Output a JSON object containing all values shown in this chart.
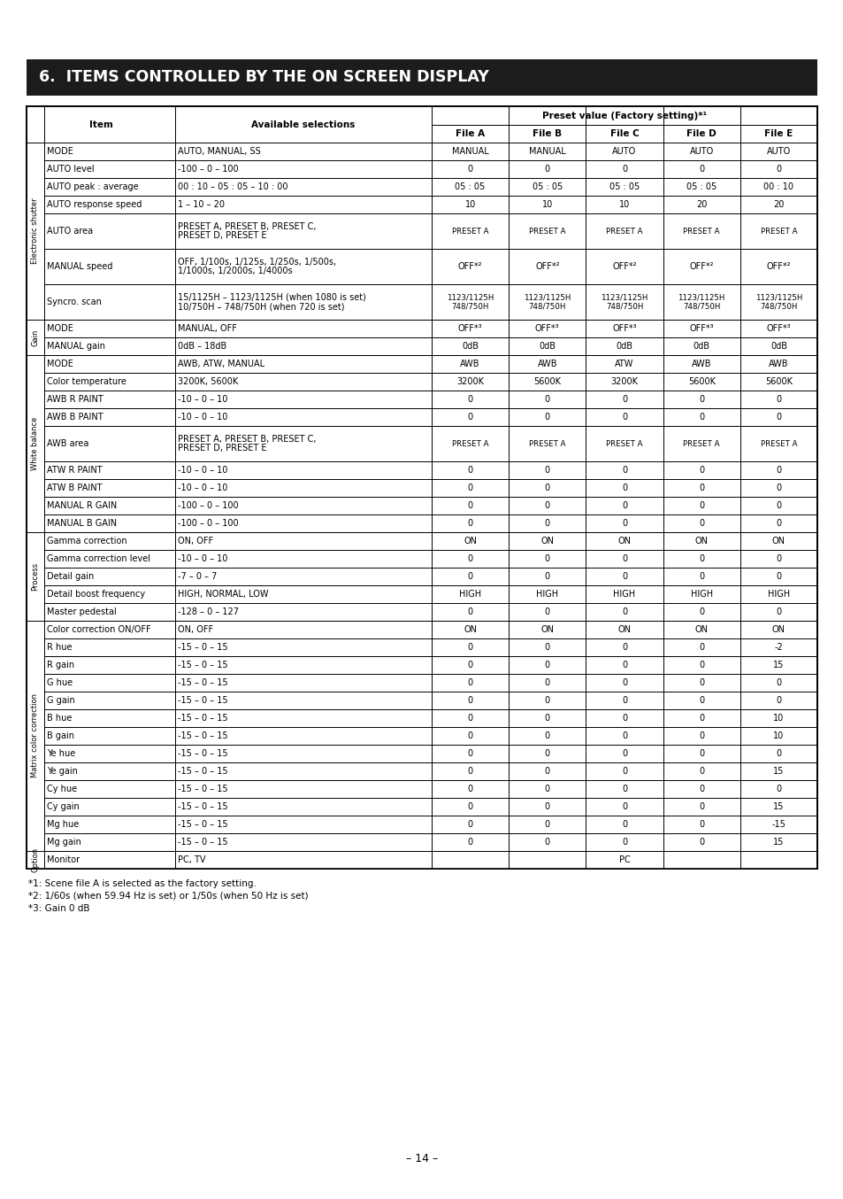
{
  "title": "6.  ITEMS CONTROLLED BY THE ON SCREEN DISPLAY",
  "page_num": "– 14 –",
  "footnotes": [
    "*1: Scene file A is selected as the factory setting.",
    "*2: 1/60s (when 59.94 Hz is set) or 1/50s (when 50 Hz is set)",
    "*3: Gain 0 dB"
  ],
  "sections": [
    {
      "label": "Electronic shutter",
      "rows": [
        {
          "item": "MODE",
          "sel": "AUTO, MANUAL, SS",
          "vals": [
            "MANUAL",
            "MANUAL",
            "AUTO",
            "AUTO",
            "AUTO"
          ],
          "tall": false
        },
        {
          "item": "AUTO level",
          "sel": "-100 – 0 – 100",
          "vals": [
            "0",
            "0",
            "0",
            "0",
            "0"
          ],
          "tall": false
        },
        {
          "item": "AUTO peak : average",
          "sel": "00 : 10 – 05 : 05 – 10 : 00",
          "vals": [
            "05 : 05",
            "05 : 05",
            "05 : 05",
            "05 : 05",
            "00 : 10"
          ],
          "tall": false
        },
        {
          "item": "AUTO response speed",
          "sel": "1 – 10 – 20",
          "vals": [
            "10",
            "10",
            "10",
            "20",
            "20"
          ],
          "tall": false
        },
        {
          "item": "AUTO area",
          "sel": "PRESET A, PRESET B, PRESET C,\nPRESET D, PRESET E",
          "vals": [
            "PRESET A",
            "PRESET A",
            "PRESET A",
            "PRESET A",
            "PRESET A"
          ],
          "tall": true
        },
        {
          "item": "MANUAL speed",
          "sel": "OFF, 1/100s, 1/125s, 1/250s, 1/500s,\n1/1000s, 1/2000s, 1/4000s",
          "vals": [
            "OFF*²",
            "OFF*²",
            "OFF*²",
            "OFF*²",
            "OFF*²"
          ],
          "tall": true
        },
        {
          "item": "Syncro. scan",
          "sel": "15/1125H – 1123/1125H (when 1080 is set)\n10/750H – 748/750H (when 720 is set)",
          "vals": [
            "1123/1125H\n748/750H",
            "1123/1125H\n748/750H",
            "1123/1125H\n748/750H",
            "1123/1125H\n748/750H",
            "1123/1125H\n748/750H"
          ],
          "tall": true
        }
      ]
    },
    {
      "label": "Gain",
      "rows": [
        {
          "item": "MODE",
          "sel": "MANUAL, OFF",
          "vals": [
            "OFF*³",
            "OFF*³",
            "OFF*³",
            "OFF*³",
            "OFF*³"
          ],
          "tall": false
        },
        {
          "item": "MANUAL gain",
          "sel": "0dB – 18dB",
          "vals": [
            "0dB",
            "0dB",
            "0dB",
            "0dB",
            "0dB"
          ],
          "tall": false
        }
      ]
    },
    {
      "label": "White balance",
      "rows": [
        {
          "item": "MODE",
          "sel": "AWB, ATW, MANUAL",
          "vals": [
            "AWB",
            "AWB",
            "ATW",
            "AWB",
            "AWB"
          ],
          "tall": false
        },
        {
          "item": "Color temperature",
          "sel": "3200K, 5600K",
          "vals": [
            "3200K",
            "5600K",
            "3200K",
            "5600K",
            "5600K"
          ],
          "tall": false
        },
        {
          "item": "AWB R PAINT",
          "sel": "-10 – 0 – 10",
          "vals": [
            "0",
            "0",
            "0",
            "0",
            "0"
          ],
          "tall": false
        },
        {
          "item": "AWB B PAINT",
          "sel": "-10 – 0 – 10",
          "vals": [
            "0",
            "0",
            "0",
            "0",
            "0"
          ],
          "tall": false
        },
        {
          "item": "AWB area",
          "sel": "PRESET A, PRESET B, PRESET C,\nPRESET D, PRESET E",
          "vals": [
            "PRESET A",
            "PRESET A",
            "PRESET A",
            "PRESET A",
            "PRESET A"
          ],
          "tall": true
        },
        {
          "item": "ATW R PAINT",
          "sel": "-10 – 0 – 10",
          "vals": [
            "0",
            "0",
            "0",
            "0",
            "0"
          ],
          "tall": false
        },
        {
          "item": "ATW B PAINT",
          "sel": "-10 – 0 – 10",
          "vals": [
            "0",
            "0",
            "0",
            "0",
            "0"
          ],
          "tall": false
        },
        {
          "item": "MANUAL R GAIN",
          "sel": "-100 – 0 – 100",
          "vals": [
            "0",
            "0",
            "0",
            "0",
            "0"
          ],
          "tall": false
        },
        {
          "item": "MANUAL B GAIN",
          "sel": "-100 – 0 – 100",
          "vals": [
            "0",
            "0",
            "0",
            "0",
            "0"
          ],
          "tall": false
        }
      ]
    },
    {
      "label": "Process",
      "rows": [
        {
          "item": "Gamma correction",
          "sel": "ON, OFF",
          "vals": [
            "ON",
            "ON",
            "ON",
            "ON",
            "ON"
          ],
          "tall": false
        },
        {
          "item": "Gamma correction level",
          "sel": "-10 – 0 – 10",
          "vals": [
            "0",
            "0",
            "0",
            "0",
            "0"
          ],
          "tall": false
        },
        {
          "item": "Detail gain",
          "sel": "-7 – 0 – 7",
          "vals": [
            "0",
            "0",
            "0",
            "0",
            "0"
          ],
          "tall": false
        },
        {
          "item": "Detail boost frequency",
          "sel": "HIGH, NORMAL, LOW",
          "vals": [
            "HIGH",
            "HIGH",
            "HIGH",
            "HIGH",
            "HIGH"
          ],
          "tall": false
        },
        {
          "item": "Master pedestal",
          "sel": "-128 – 0 – 127",
          "vals": [
            "0",
            "0",
            "0",
            "0",
            "0"
          ],
          "tall": false
        }
      ]
    },
    {
      "label": "Matrix color correction",
      "rows": [
        {
          "item": "Color correction ON/OFF",
          "sel": "ON, OFF",
          "vals": [
            "ON",
            "ON",
            "ON",
            "ON",
            "ON"
          ],
          "tall": false
        },
        {
          "item": "R hue",
          "sel": "-15 – 0 – 15",
          "vals": [
            "0",
            "0",
            "0",
            "0",
            "-2"
          ],
          "tall": false
        },
        {
          "item": "R gain",
          "sel": "-15 – 0 – 15",
          "vals": [
            "0",
            "0",
            "0",
            "0",
            "15"
          ],
          "tall": false
        },
        {
          "item": "G hue",
          "sel": "-15 – 0 – 15",
          "vals": [
            "0",
            "0",
            "0",
            "0",
            "0"
          ],
          "tall": false
        },
        {
          "item": "G gain",
          "sel": "-15 – 0 – 15",
          "vals": [
            "0",
            "0",
            "0",
            "0",
            "0"
          ],
          "tall": false
        },
        {
          "item": "B hue",
          "sel": "-15 – 0 – 15",
          "vals": [
            "0",
            "0",
            "0",
            "0",
            "10"
          ],
          "tall": false
        },
        {
          "item": "B gain",
          "sel": "-15 – 0 – 15",
          "vals": [
            "0",
            "0",
            "0",
            "0",
            "10"
          ],
          "tall": false
        },
        {
          "item": "Ye hue",
          "sel": "-15 – 0 – 15",
          "vals": [
            "0",
            "0",
            "0",
            "0",
            "0"
          ],
          "tall": false
        },
        {
          "item": "Ye gain",
          "sel": "-15 – 0 – 15",
          "vals": [
            "0",
            "0",
            "0",
            "0",
            "15"
          ],
          "tall": false
        },
        {
          "item": "Cy hue",
          "sel": "-15 – 0 – 15",
          "vals": [
            "0",
            "0",
            "0",
            "0",
            "0"
          ],
          "tall": false
        },
        {
          "item": "Cy gain",
          "sel": "-15 – 0 – 15",
          "vals": [
            "0",
            "0",
            "0",
            "0",
            "15"
          ],
          "tall": false
        },
        {
          "item": "Mg hue",
          "sel": "-15 – 0 – 15",
          "vals": [
            "0",
            "0",
            "0",
            "0",
            "-15"
          ],
          "tall": false
        },
        {
          "item": "Mg gain",
          "sel": "-15 – 0 – 15",
          "vals": [
            "0",
            "0",
            "0",
            "0",
            "15"
          ],
          "tall": false
        }
      ]
    },
    {
      "label": "Option",
      "rows": [
        {
          "item": "Monitor",
          "sel": "PC, TV",
          "vals": [
            "",
            "",
            "",
            "",
            ""
          ],
          "tall": false,
          "merged_val": "PC"
        }
      ]
    }
  ]
}
